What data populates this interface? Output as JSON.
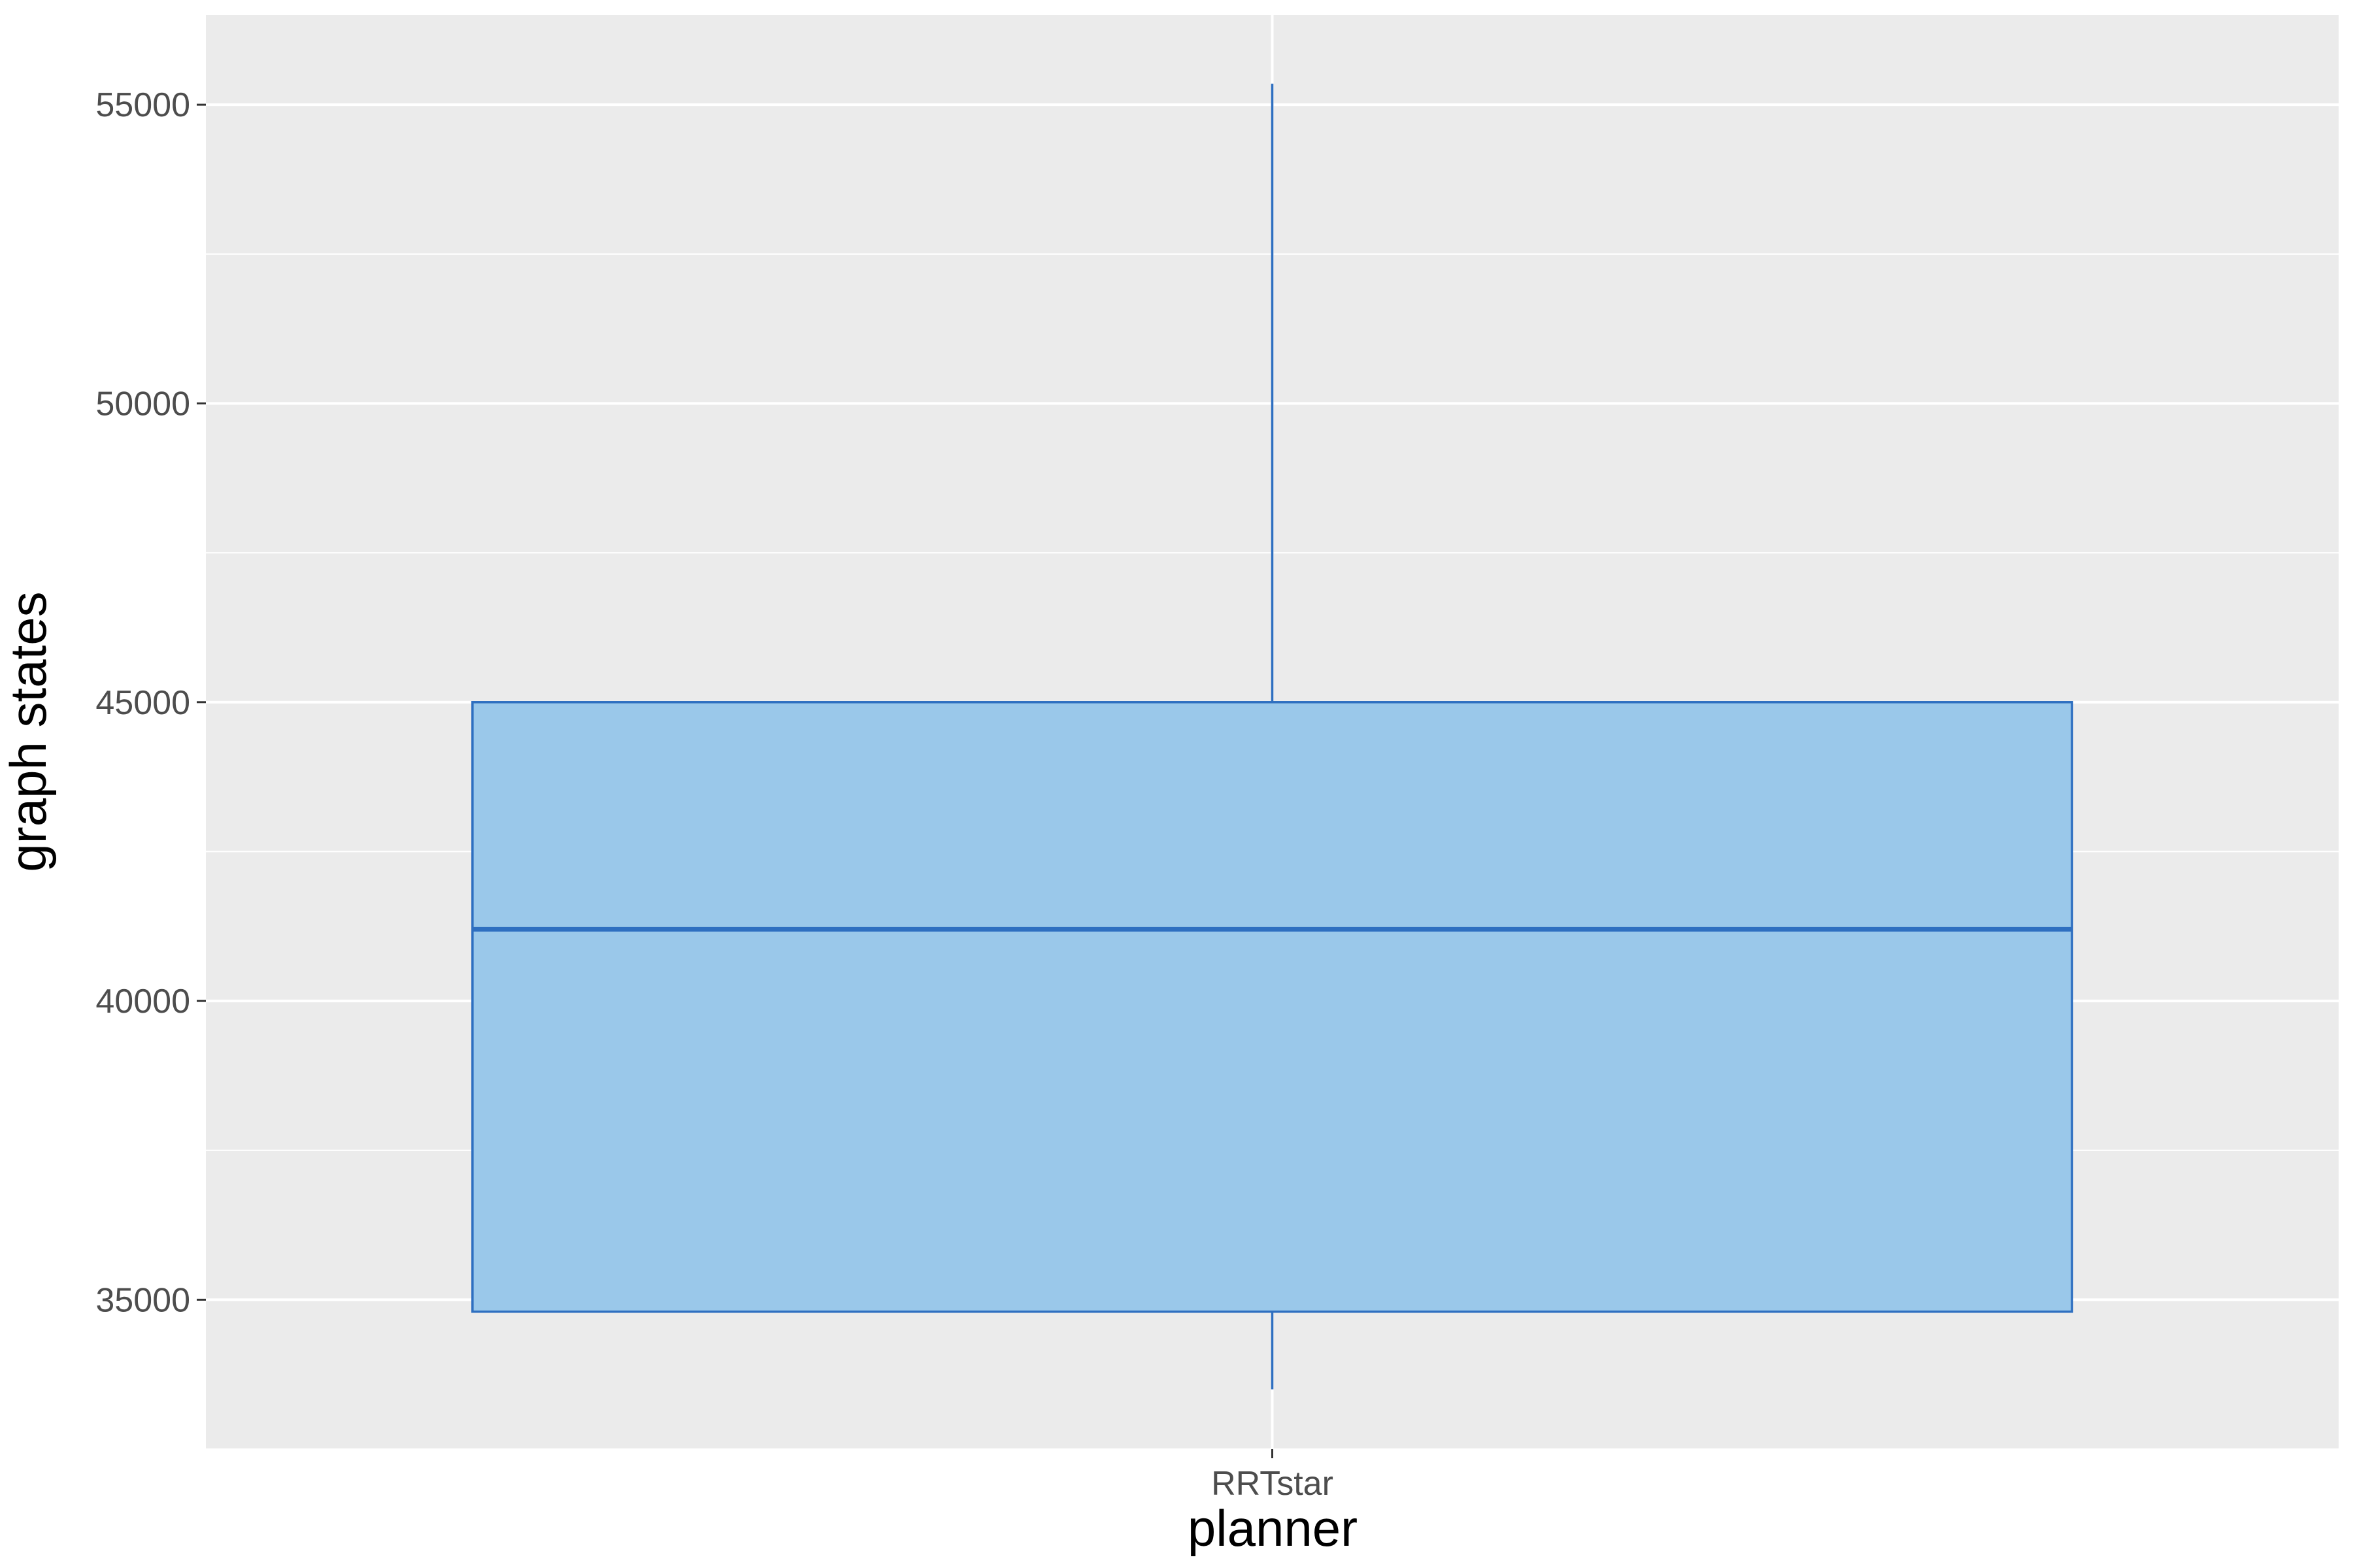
{
  "chart_data": {
    "type": "box",
    "categories": [
      "RRTstar"
    ],
    "series": [
      {
        "stats": [
          {
            "category": "RRTstar",
            "whisker_low": 33500,
            "q1": 34800,
            "median": 41200,
            "q3": 45000,
            "whisker_high": 55350
          }
        ]
      }
    ],
    "xlabel": "planner",
    "ylabel": "graph states",
    "ylim": [
      32500,
      56500
    ],
    "yticks": [
      35000,
      40000,
      45000,
      50000,
      55000
    ],
    "ytick_labels": [
      "35000",
      "40000",
      "45000",
      "50000",
      "55000"
    ],
    "grid": true,
    "colors": {
      "panel": "#ebebeb",
      "grid": "#ffffff",
      "box_fill": "#9ac8ea",
      "box_line": "#2e6fc0",
      "tick": "#333333"
    }
  }
}
